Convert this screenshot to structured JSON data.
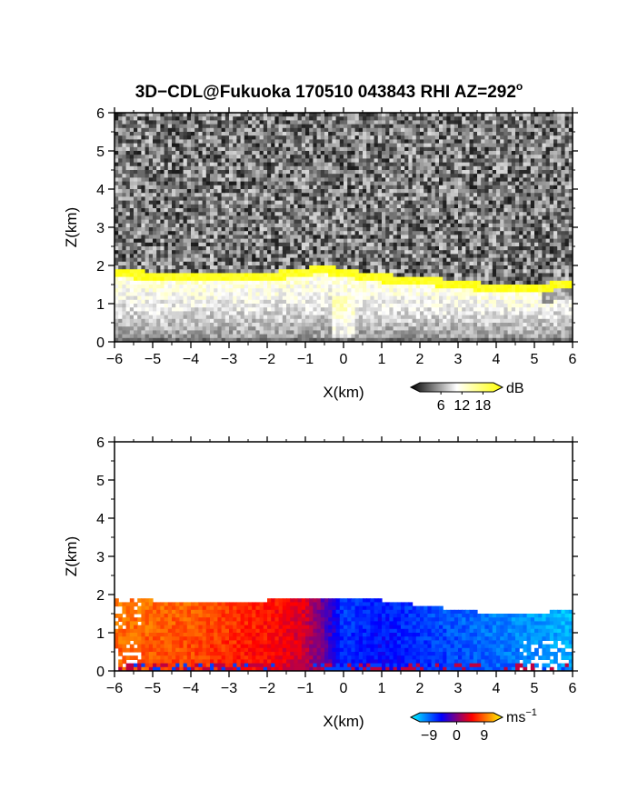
{
  "title": "3D−CDL@Fukuoka 170510 043843 RHI AZ=292",
  "title_sup": "o",
  "chart_data": [
    {
      "type": "heatmap",
      "panel": "reflectivity",
      "xlabel": "X(km)",
      "ylabel": "Z(km)",
      "xlim": [
        -6,
        6
      ],
      "ylim": [
        0,
        6
      ],
      "x_ticks": [
        "−6",
        "−5",
        "−4",
        "−3",
        "−2",
        "−1",
        "0",
        "1",
        "2",
        "3",
        "4",
        "5",
        "6"
      ],
      "y_ticks": [
        "0",
        "1",
        "2",
        "3",
        "4",
        "5",
        "6"
      ],
      "colorbar": {
        "unit": "dB",
        "ticks": [
          "6",
          "12",
          "18"
        ],
        "range": [
          0,
          21
        ],
        "colors": [
          "#000000",
          "#ffffff",
          "#ffff00"
        ]
      },
      "layer_top_km": [
        [
          -6,
          1.88
        ],
        [
          -5,
          1.82
        ],
        [
          -4,
          1.8
        ],
        [
          -3,
          1.82
        ],
        [
          -2,
          1.8
        ],
        [
          -1,
          1.9
        ],
        [
          -0.7,
          2.0
        ],
        [
          0,
          1.9
        ],
        [
          0.5,
          1.82
        ],
        [
          1,
          1.75
        ],
        [
          2,
          1.68
        ],
        [
          3,
          1.6
        ],
        [
          4,
          1.48
        ],
        [
          5,
          1.45
        ],
        [
          5.5,
          1.55
        ],
        [
          6,
          1.6
        ]
      ],
      "layer_band_km": 0.2
    },
    {
      "type": "heatmap",
      "panel": "doppler_velocity",
      "xlabel": "X(km)",
      "ylabel": "Z(km)",
      "xlim": [
        -6,
        6
      ],
      "ylim": [
        0,
        6
      ],
      "x_ticks": [
        "−6",
        "−5",
        "−4",
        "−3",
        "−2",
        "−1",
        "0",
        "1",
        "2",
        "3",
        "4",
        "5",
        "6"
      ],
      "y_ticks": [
        "0",
        "1",
        "2",
        "3",
        "4",
        "5",
        "6"
      ],
      "colorbar": {
        "unit": "ms",
        "unit_sup": "−1",
        "ticks": [
          "−9",
          "0",
          "9"
        ],
        "range": [
          -12,
          12
        ],
        "colors": [
          "#00ffff",
          "#0000ff",
          "#ff0000",
          "#ffff00"
        ]
      },
      "velocity_ms": [
        [
          -6,
          8
        ],
        [
          -4,
          7
        ],
        [
          -2,
          5
        ],
        [
          -1,
          3
        ],
        [
          0,
          -6
        ],
        [
          1,
          -5
        ],
        [
          3,
          -7
        ],
        [
          5,
          -9
        ],
        [
          6,
          -10
        ]
      ],
      "echo_top_km": [
        [
          -6,
          1.9
        ],
        [
          -5,
          1.85
        ],
        [
          -4,
          1.85
        ],
        [
          -3,
          1.85
        ],
        [
          -2,
          1.85
        ],
        [
          -1,
          1.92
        ],
        [
          0,
          1.95
        ],
        [
          1,
          1.85
        ],
        [
          2,
          1.72
        ],
        [
          3,
          1.6
        ],
        [
          4,
          1.5
        ],
        [
          5,
          1.48
        ],
        [
          6,
          1.65
        ]
      ]
    }
  ]
}
